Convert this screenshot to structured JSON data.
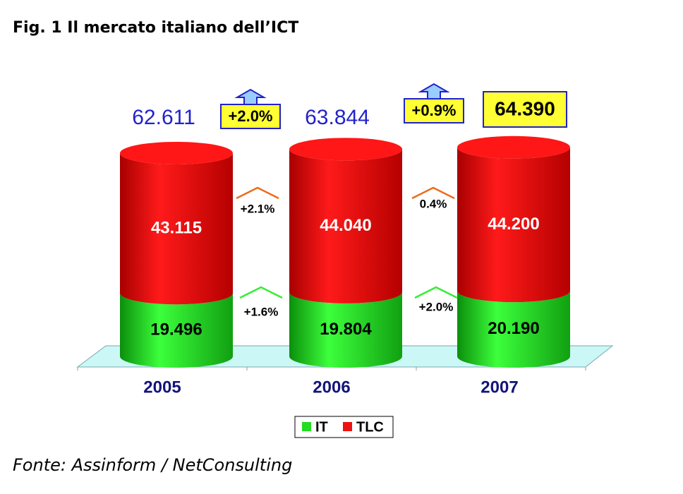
{
  "chart_data": {
    "type": "stacked-cylinder",
    "title": "Fig. 1 Il mercato italiano dell’ICT",
    "source": "Fonte: Assinform / NetConsulting",
    "categories": [
      "2005",
      "2006",
      "2007"
    ],
    "series": [
      {
        "name": "IT",
        "color": "#22dd22",
        "values": [
          19.496,
          19.804,
          20.19
        ],
        "value_labels": [
          "19.496",
          "19.804",
          "20.190"
        ]
      },
      {
        "name": "TLC",
        "color": "#ee1111",
        "values": [
          43.115,
          44.04,
          44.2
        ],
        "value_labels": [
          "43.115",
          "44.040",
          "44.200"
        ]
      }
    ],
    "total_labels": [
      "62.611",
      "63.844",
      "64.390"
    ],
    "total_growth_labels": [
      "+2.0%",
      "+0.9%"
    ],
    "tlc_growth_labels": [
      "+2.1%",
      "0.4%"
    ],
    "it_growth_labels": [
      "+1.6%",
      "+2.0%"
    ]
  }
}
